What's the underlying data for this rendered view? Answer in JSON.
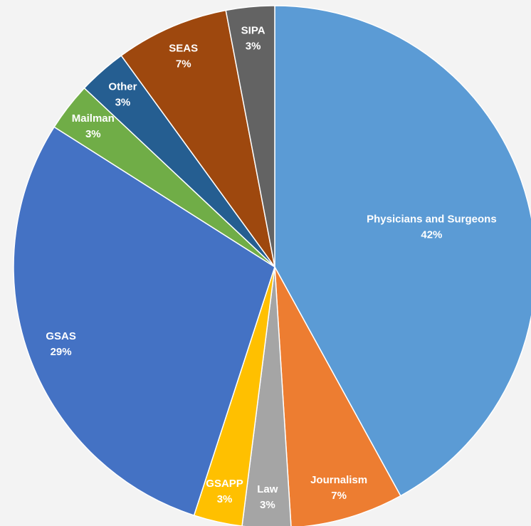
{
  "chart_data": {
    "type": "pie",
    "categories": [
      "Physicians and Surgeons",
      "Journalism",
      "Law",
      "GSAPP",
      "GSAS",
      "Mailman",
      "Other",
      "SEAS",
      "SIPA"
    ],
    "values": [
      42,
      7,
      3,
      3,
      29,
      3,
      3,
      7,
      3
    ],
    "value_labels": [
      "42%",
      "7%",
      "3%",
      "3%",
      "29%",
      "3%",
      "3%",
      "7%",
      "3%"
    ],
    "colors": [
      "#5b9bd5",
      "#ed7d31",
      "#a5a5a5",
      "#ffc000",
      "#4472c4",
      "#70ad47",
      "#255e91",
      "#9e480e",
      "#636363"
    ]
  }
}
